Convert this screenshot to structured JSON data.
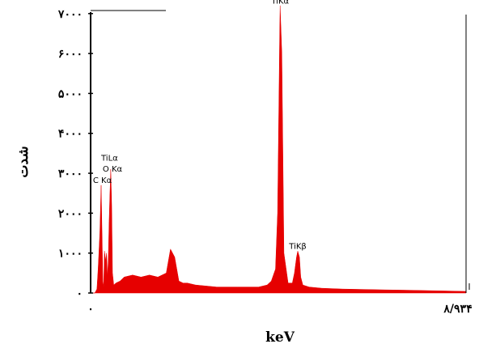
{
  "chart_data": {
    "type": "area",
    "xlabel": "keV",
    "ylabel": "شدت",
    "x_tick_labels": [
      "۰",
      "۸/۹۳۴"
    ],
    "xlim": [
      0,
      8.934
    ],
    "ylim": [
      0,
      7300
    ],
    "yticks": [
      0,
      1000,
      2000,
      3000,
      4000,
      5000,
      6000,
      7000
    ],
    "y_tick_labels": [
      "۰",
      "۱۰۰۰",
      "۲۰۰۰",
      "۳۰۰۰",
      "۴۰۰۰",
      "۵۰۰۰",
      "۶۰۰۰",
      "۷۰۰۰"
    ],
    "grid": false,
    "color": "#e60000",
    "annotations": [
      {
        "text": "C Kα",
        "x": 0.28,
        "y": 2700
      },
      {
        "text": "TiLα",
        "x": 0.45,
        "y": 3250
      },
      {
        "text": "O Kα",
        "x": 0.52,
        "y": 2980
      },
      {
        "text": "TiKα",
        "x": 4.51,
        "y": 7190
      },
      {
        "text": "TiKβ",
        "x": 4.93,
        "y": 1040
      }
    ],
    "series": [
      {
        "x": [
          0,
          0.1,
          0.15,
          0.18,
          0.22,
          0.25,
          0.27,
          0.29,
          0.31,
          0.33,
          0.36,
          0.38,
          0.4,
          0.42,
          0.44,
          0.46,
          0.48,
          0.5,
          0.52,
          0.55,
          0.6,
          0.7,
          0.8,
          1.0,
          1.2,
          1.4,
          1.6,
          1.8,
          1.9,
          2.0,
          2.1,
          2.2,
          2.3,
          2.5,
          3.0,
          3.5,
          4.0,
          4.2,
          4.3,
          4.4,
          4.45,
          4.5,
          4.51,
          4.55,
          4.6,
          4.7,
          4.8,
          4.85,
          4.9,
          4.93,
          4.97,
          5.0,
          5.05,
          5.2,
          5.5,
          6.0,
          6.5,
          7.0,
          7.5,
          8.0,
          8.5,
          8.934
        ],
        "y": [
          0,
          0,
          100,
          600,
          1500,
          2700,
          1600,
          300,
          150,
          1050,
          800,
          1000,
          400,
          800,
          1800,
          2500,
          3100,
          2200,
          500,
          200,
          250,
          300,
          400,
          450,
          400,
          450,
          400,
          500,
          1100,
          900,
          300,
          250,
          250,
          200,
          150,
          150,
          150,
          200,
          300,
          600,
          2000,
          6500,
          7200,
          6000,
          1000,
          250,
          250,
          500,
          900,
          1050,
          900,
          400,
          200,
          150,
          120,
          100,
          90,
          80,
          70,
          60,
          50,
          40
        ]
      }
    ]
  }
}
